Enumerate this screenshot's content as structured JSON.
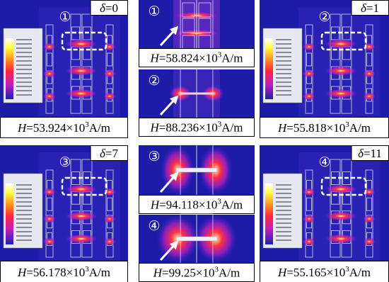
{
  "panels": [
    {
      "marker": "①",
      "delta": {
        "symbol": "δ",
        "value": "=0"
      },
      "field": {
        "symbol": "H",
        "value": "=53.924×10",
        "exponent": "3",
        "unit": "A/m"
      }
    },
    {
      "marker": "②",
      "delta": {
        "symbol": "δ",
        "value": "=1"
      },
      "field": {
        "symbol": "H",
        "value": "=55.818×10",
        "exponent": "3",
        "unit": "A/m"
      }
    },
    {
      "marker": "③",
      "delta": {
        "symbol": "δ",
        "value": "=7"
      },
      "field": {
        "symbol": "H",
        "value": "=56.178×10",
        "exponent": "3",
        "unit": "A/m"
      }
    },
    {
      "marker": "④",
      "delta": {
        "symbol": "δ",
        "value": "=11"
      },
      "field": {
        "symbol": "H",
        "value": "=55.165×10",
        "exponent": "3",
        "unit": "A/m"
      }
    }
  ],
  "zoom_panels": [
    {
      "marker": "①",
      "field": {
        "symbol": "H",
        "value": "=58.824×10",
        "exponent": "3",
        "unit": "A/m"
      }
    },
    {
      "marker": "②",
      "field": {
        "symbol": "H",
        "value": "=88.236×10",
        "exponent": "3",
        "unit": "A/m"
      }
    },
    {
      "marker": "③",
      "field": {
        "symbol": "H",
        "value": "=94.118×10",
        "exponent": "3",
        "unit": "A/m"
      }
    },
    {
      "marker": "④",
      "field": {
        "symbol": "H",
        "value": "=99.25×10",
        "exponent": "3",
        "unit": "A/m"
      }
    }
  ]
}
